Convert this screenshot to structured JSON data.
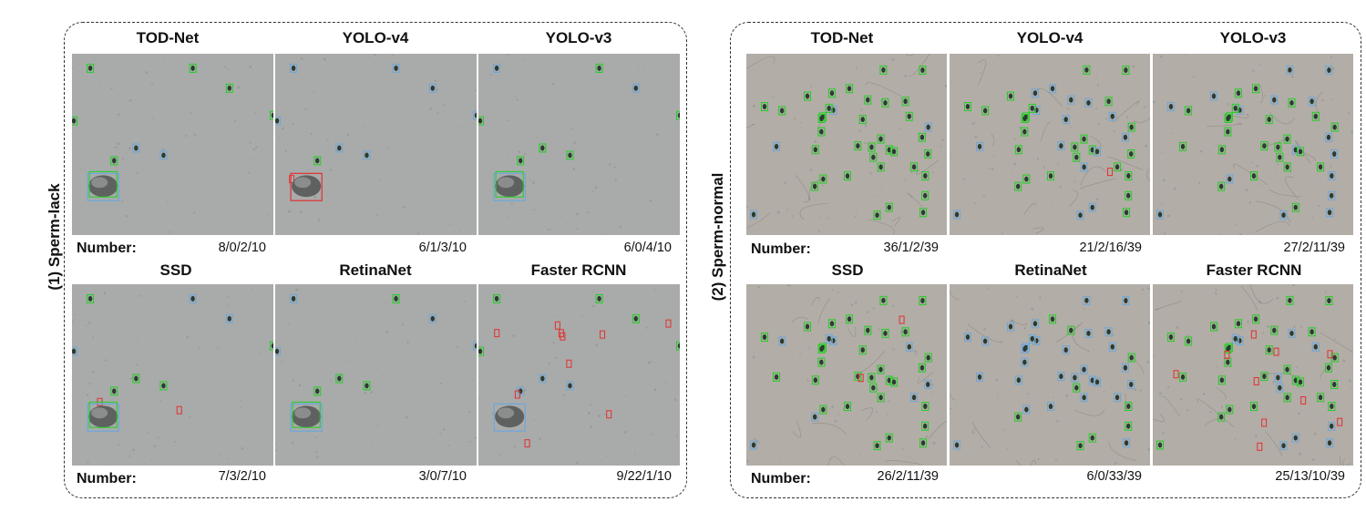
{
  "colors": {
    "sperm_lack_bg": "#a9abaa",
    "sperm_normal_bg": "#b2ada7",
    "green_box": "#1fd11f",
    "blue_box": "#6aa8dc",
    "red_box": "#e23030"
  },
  "panels": [
    {
      "label": "(1) Sperm-lack",
      "number_label": "Number:",
      "methods": [
        {
          "name": "TOD-Net",
          "count": "8/0/2/10"
        },
        {
          "name": "YOLO-v4",
          "count": "6/1/3/10"
        },
        {
          "name": "YOLO-v3",
          "count": "6/0/4/10"
        },
        {
          "name": "SSD",
          "count": "7/3/2/10"
        },
        {
          "name": "RetinaNet",
          "count": "3/0/7/10"
        },
        {
          "name": "Faster RCNN",
          "count": "9/22/1/10"
        }
      ]
    },
    {
      "label": "(2) Sperm-normal",
      "number_label": "Number:",
      "methods": [
        {
          "name": "TOD-Net",
          "count": "36/1/2/39"
        },
        {
          "name": "YOLO-v4",
          "count": "21/2/16/39"
        },
        {
          "name": "YOLO-v3",
          "count": "27/2/11/39"
        },
        {
          "name": "SSD",
          "count": "26/2/11/39"
        },
        {
          "name": "RetinaNet",
          "count": "6/0/33/39"
        },
        {
          "name": "Faster RCNN",
          "count": "25/13/10/39"
        }
      ]
    }
  ]
}
